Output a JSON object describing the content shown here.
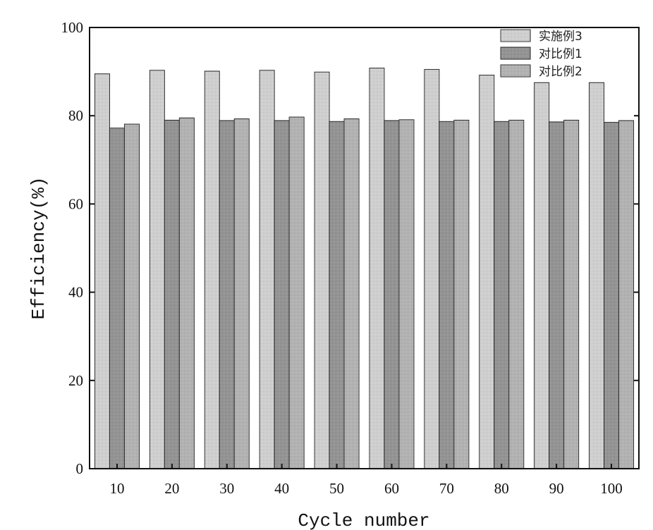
{
  "chart_data": {
    "type": "bar",
    "title": "",
    "xlabel": "Cycle number",
    "ylabel": "Efficiency(%)",
    "ylim": [
      0,
      100
    ],
    "yticks": [
      "0",
      "20",
      "40",
      "60",
      "80",
      "100"
    ],
    "categories": [
      "10",
      "20",
      "30",
      "40",
      "50",
      "60",
      "70",
      "80",
      "90",
      "100"
    ],
    "legend_position": "top-right",
    "series": [
      {
        "name": "实施例3",
        "values": [
          89.5,
          90.3,
          90.1,
          90.3,
          89.9,
          90.8,
          90.5,
          89.2,
          87.5,
          87.5
        ]
      },
      {
        "name": "对比例1",
        "values": [
          77.2,
          79.0,
          78.9,
          78.9,
          78.7,
          78.9,
          78.7,
          78.7,
          78.6,
          78.5
        ]
      },
      {
        "name": "对比例2",
        "values": [
          78.1,
          79.5,
          79.3,
          79.7,
          79.3,
          79.1,
          79.0,
          79.0,
          79.0,
          78.9
        ]
      }
    ],
    "colors": [
      "#d2d2d2",
      "#8f8f8f",
      "#b2b2b2"
    ]
  }
}
